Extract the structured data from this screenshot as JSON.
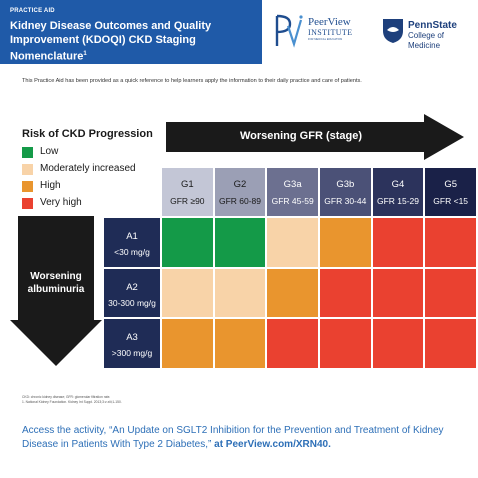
{
  "header": {
    "kicker": "PRACTICE AID",
    "title": "Kidney Disease Outcomes and Quality Improvement (KDOQI) CKD Staging Nomenclature",
    "title_superscript": "1",
    "banner_color": "#1f5aa8"
  },
  "logos": {
    "peerview_name": "PeerView",
    "peerview_institute": "INSTITUTE",
    "peerview_tagline": "FOR MEDICAL EDUCATION",
    "pennstate_name": "PennState",
    "pennstate_college": "College of Medicine"
  },
  "intro": "This Practice Aid has been provided as a quick reference to help learners apply the information to their daily practice and care of patients.",
  "legend": {
    "title": "Risk of CKD Progression",
    "items": [
      {
        "label": "Low",
        "color": "#149a48"
      },
      {
        "label": "Moderately increased",
        "color": "#f8d3a8"
      },
      {
        "label": "High",
        "color": "#e9952e"
      },
      {
        "label": "Very high",
        "color": "#ea4130"
      }
    ]
  },
  "gfr_axis": {
    "label": "Worsening GFR (stage)"
  },
  "albuminuria_axis": {
    "label_line1": "Worsening",
    "label_line2": "albuminuria"
  },
  "table": {
    "columns": [
      {
        "stage": "G1",
        "gfr": "GFR ≥90",
        "color": "#c3c6d6",
        "text_color": "#1a1a1a"
      },
      {
        "stage": "G2",
        "gfr": "GFR 60-89",
        "color": "#9b9fb5",
        "text_color": "#1a1a1a"
      },
      {
        "stage": "G3a",
        "gfr": "GFR 45-59",
        "color": "#6c7090",
        "text_color": "#ffffff"
      },
      {
        "stage": "G3b",
        "gfr": "GFR 30-44",
        "color": "#4b5177",
        "text_color": "#ffffff"
      },
      {
        "stage": "G4",
        "gfr": "GFR 15-29",
        "color": "#2c335c",
        "text_color": "#ffffff"
      },
      {
        "stage": "G5",
        "gfr": "GFR <15",
        "color": "#1a2148",
        "text_color": "#ffffff"
      }
    ],
    "rows": [
      {
        "category": "A1",
        "value": "<30 mg/g",
        "risk": [
          "Low",
          "Low",
          "Moderately increased",
          "High",
          "Very high",
          "Very high"
        ]
      },
      {
        "category": "A2",
        "value": "30-300 mg/g",
        "risk": [
          "Moderately increased",
          "Moderately increased",
          "High",
          "Very high",
          "Very high",
          "Very high"
        ]
      },
      {
        "category": "A3",
        "value": ">300 mg/g",
        "risk": [
          "High",
          "High",
          "Very high",
          "Very high",
          "Very high",
          "Very high"
        ]
      }
    ]
  },
  "footnotes": {
    "abbrev": "CKD: chronic kidney disease; GFR: glomerular filtration rate.",
    "ref": "1. National Kidney Foundation. Kidney Int Suppl. 2013;3:v-xiii;1-150."
  },
  "cta": {
    "text": "Access the activity, “An Update on SGLT2 Inhibition for the Prevention and Treatment of Kidney Disease in Patients With Type 2 Diabetes,” ",
    "link": "at PeerView.com/XRN40."
  }
}
